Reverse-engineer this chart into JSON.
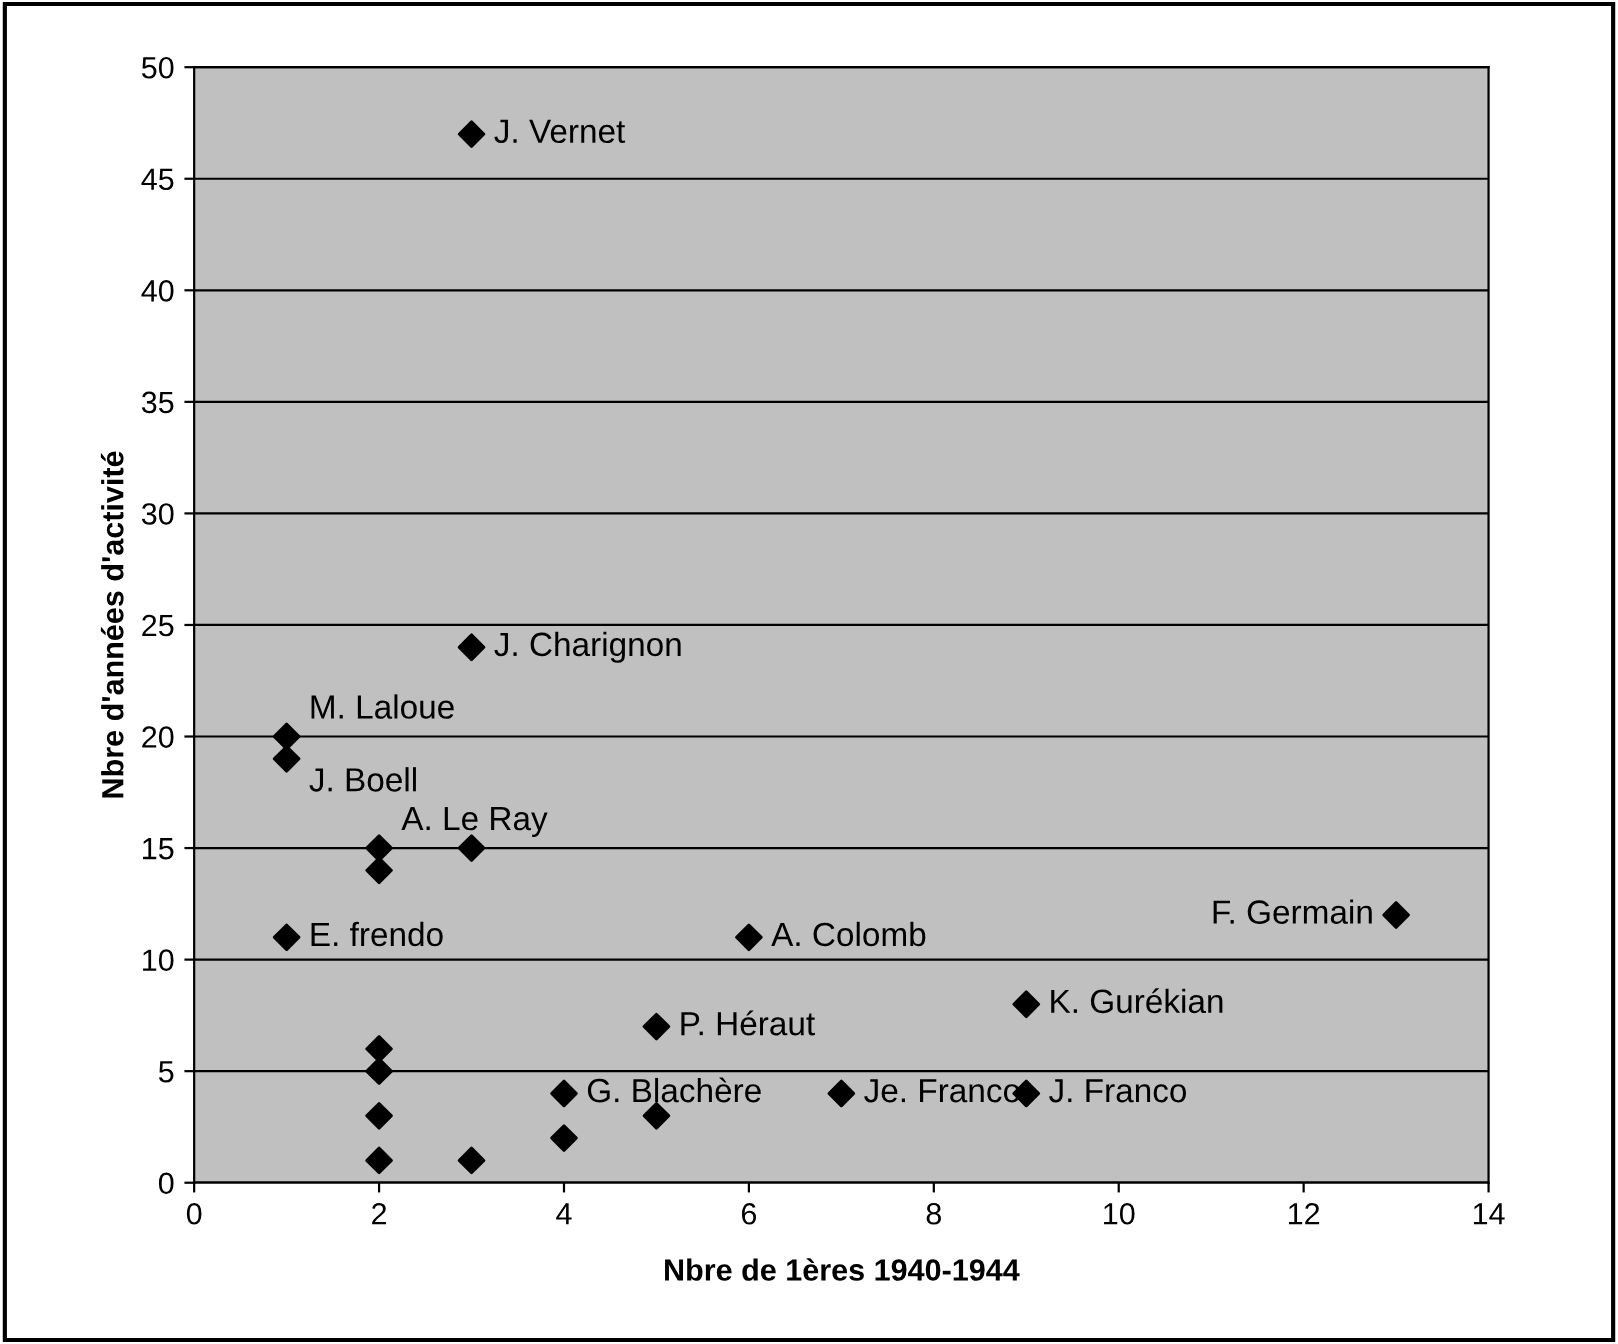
{
  "chart_data": {
    "type": "scatter",
    "xlabel": "Nbre de 1ères 1940-1944",
    "ylabel": "Nbre d'années d'activité",
    "x": [
      3,
      3,
      1,
      1,
      2,
      3,
      2,
      1,
      6,
      13,
      9,
      5,
      2,
      2,
      2,
      2,
      3,
      4,
      4,
      5,
      7,
      9
    ],
    "series": [
      {
        "color": "#000000",
        "values": [
          47,
          24,
          20,
          19,
          15,
          15,
          14,
          11,
          11,
          12,
          8,
          7,
          6,
          5,
          3,
          1,
          1,
          4,
          2,
          3,
          4,
          4
        ]
      }
    ],
    "marker": "diamond",
    "grid": "y",
    "xlim": [
      0,
      14
    ],
    "xticks": [
      0,
      2,
      4,
      6,
      8,
      10,
      12,
      14
    ],
    "ylim": [
      0,
      50
    ],
    "yticks": [
      0,
      5,
      10,
      15,
      20,
      25,
      30,
      35,
      40,
      45,
      50
    ],
    "annotations": [
      {
        "text": "J. Vernet",
        "x": 3,
        "y": 47
      },
      {
        "text": "J. Charignon",
        "x": 3,
        "y": 24
      },
      {
        "text": "M. Laloue",
        "x": 1,
        "y": 20
      },
      {
        "text": "J. Boell",
        "x": 1,
        "y": 19
      },
      {
        "text": "A. Le Ray",
        "x": 2,
        "y": 15
      },
      {
        "text": "E. frendo",
        "x": 1,
        "y": 11
      },
      {
        "text": "A. Colomb",
        "x": 6,
        "y": 11
      },
      {
        "text": "F. Germain",
        "x": 13,
        "y": 12
      },
      {
        "text": "K. Gurékian",
        "x": 9,
        "y": 8
      },
      {
        "text": "P. Héraut",
        "x": 5,
        "y": 7
      },
      {
        "text": "G. Blachère",
        "x": 4,
        "y": 4
      },
      {
        "text": "Je. Franco",
        "x": 7,
        "y": 4
      },
      {
        "text": "J. Franco",
        "x": 9,
        "y": 4
      }
    ]
  }
}
